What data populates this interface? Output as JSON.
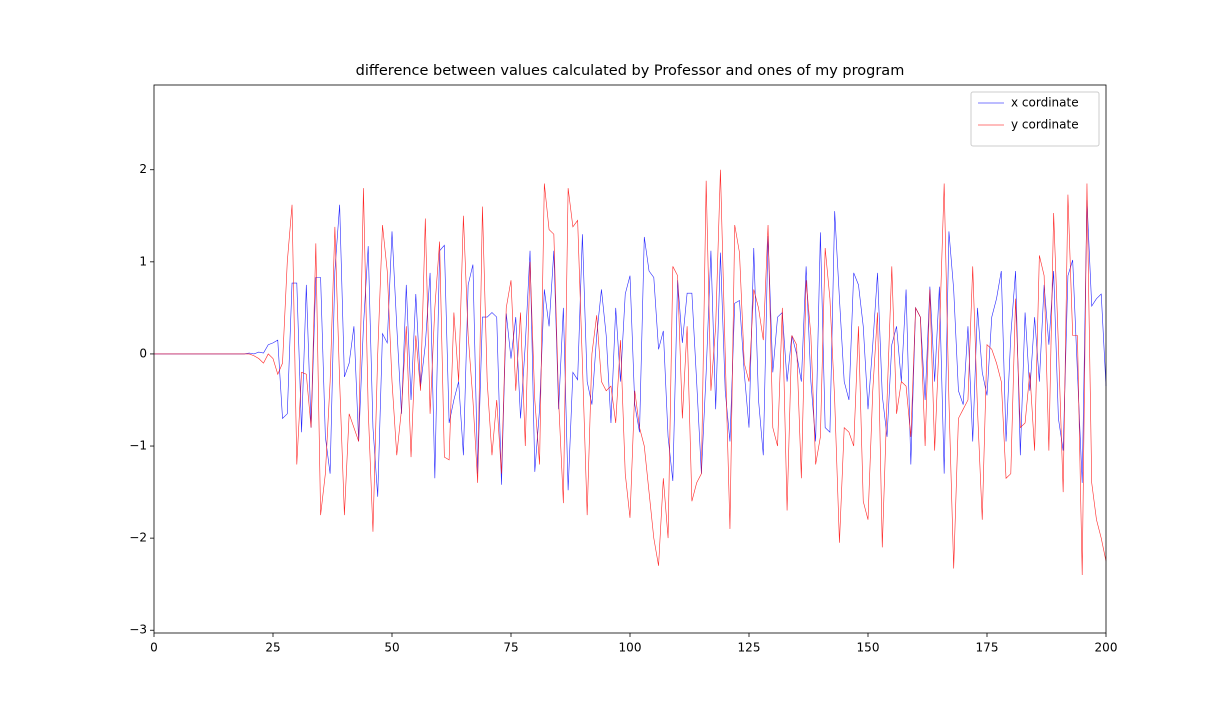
{
  "chart_data": {
    "type": "line",
    "title": "difference between values calculated by Professor and ones of my program",
    "x": [
      0,
      1,
      2,
      3,
      4,
      5,
      6,
      7,
      8,
      9,
      10,
      11,
      12,
      13,
      14,
      15,
      16,
      17,
      18,
      19,
      20,
      21,
      22,
      23,
      24,
      25,
      26,
      27,
      28,
      29,
      30,
      31,
      32,
      33,
      34,
      35,
      36,
      37,
      38,
      39,
      40,
      41,
      42,
      43,
      44,
      45,
      46,
      47,
      48,
      49,
      50,
      51,
      52,
      53,
      54,
      55,
      56,
      57,
      58,
      59,
      60,
      61,
      62,
      63,
      64,
      65,
      66,
      67,
      68,
      69,
      70,
      71,
      72,
      73,
      74,
      75,
      76,
      77,
      78,
      79,
      80,
      81,
      82,
      83,
      84,
      85,
      86,
      87,
      88,
      89,
      90,
      91,
      92,
      93,
      94,
      95,
      96,
      97,
      98,
      99,
      100,
      101,
      102,
      103,
      104,
      105,
      106,
      107,
      108,
      109,
      110,
      111,
      112,
      113,
      114,
      115,
      116,
      117,
      118,
      119,
      120,
      121,
      122,
      123,
      124,
      125,
      126,
      127,
      128,
      129,
      130,
      131,
      132,
      133,
      134,
      135,
      136,
      137,
      138,
      139,
      140,
      141,
      142,
      143,
      144,
      145,
      146,
      147,
      148,
      149,
      150,
      151,
      152,
      153,
      154,
      155,
      156,
      157,
      158,
      159,
      160,
      161,
      162,
      163,
      164,
      165,
      166,
      167,
      168,
      169,
      170,
      171,
      172,
      173,
      174,
      175,
      176,
      177,
      178,
      179,
      180,
      181,
      182,
      183,
      184,
      185,
      186,
      187,
      188,
      189,
      190,
      191,
      192,
      193,
      194,
      195,
      196,
      197,
      198,
      199,
      200
    ],
    "series": [
      {
        "name": "x cordinate",
        "color": "#0000ff",
        "values": [
          0,
          0,
          0,
          0,
          0,
          0,
          0,
          0,
          0,
          0,
          0,
          0,
          0,
          0,
          0,
          0,
          0,
          0,
          0,
          0,
          0.01,
          0,
          0.02,
          0.01,
          0.1,
          0.12,
          0.15,
          -0.7,
          -0.65,
          0.77,
          0.77,
          -0.85,
          0.75,
          -0.8,
          0.83,
          0.83,
          -0.9,
          -1.3,
          0.9,
          1.62,
          -0.25,
          -0.1,
          0.3,
          -0.95,
          0.3,
          1.17,
          -0.8,
          -1.55,
          0.22,
          0.12,
          1.33,
          0.3,
          -0.65,
          0.75,
          -0.5,
          0.65,
          -0.35,
          0.1,
          0.88,
          -1.35,
          1.12,
          1.18,
          -0.75,
          -0.5,
          -0.3,
          -1.1,
          0.75,
          0.97,
          -1.3,
          0.4,
          0.4,
          0.45,
          0.4,
          -1.42,
          0.44,
          -0.05,
          0.4,
          -0.7,
          0.1,
          1.12,
          -1.28,
          -0.6,
          0.7,
          0.3,
          1.12,
          -0.6,
          0.5,
          -1.48,
          -0.2,
          -0.28,
          1.3,
          -0.3,
          -0.55,
          0.2,
          0.7,
          0.2,
          -0.75,
          0.5,
          -0.3,
          0.65,
          0.85,
          -0.55,
          -0.85,
          1.27,
          0.9,
          0.83,
          0.05,
          0.25,
          -0.9,
          -1.38,
          0.8,
          0.12,
          0.66,
          0.66,
          -0.3,
          -1.3,
          -0.2,
          1.12,
          -0.6,
          1.1,
          -0.4,
          -0.95,
          0.55,
          0.58,
          -0.2,
          -0.8,
          1.15,
          -0.5,
          -1.1,
          1.28,
          -0.2,
          0.4,
          0.45,
          -0.3,
          0.2,
          0,
          -0.3,
          0.95,
          -0.3,
          -0.95,
          1.32,
          -0.8,
          -0.85,
          1.55,
          0.6,
          -0.3,
          -0.5,
          0.88,
          0.75,
          0.3,
          -0.6,
          0.1,
          0.88,
          -0.45,
          -0.9,
          0.1,
          0.3,
          -0.3,
          0.7,
          -1.2,
          0.5,
          0.4,
          -0.5,
          0.73,
          -0.3,
          0.73,
          -1.3,
          1.33,
          0.7,
          -0.4,
          -0.55,
          0.3,
          -0.95,
          0.5,
          -0.2,
          -0.45,
          0.4,
          0.6,
          0.9,
          -0.95,
          0.2,
          0.9,
          -1.1,
          0.45,
          -0.4,
          0.4,
          -0.3,
          0.75,
          0.1,
          0.9,
          -0.7,
          -1.05,
          0.85,
          1.02,
          -0.2,
          -1.4,
          1.67,
          0.52,
          0.6,
          0.65,
          -0.35
        ]
      },
      {
        "name": "y cordinate",
        "color": "#ff0000",
        "values": [
          0,
          0,
          0,
          0,
          0,
          0,
          0,
          0,
          0,
          0,
          0,
          0,
          0,
          0,
          0,
          0,
          0,
          0,
          0,
          0,
          0,
          -0.02,
          -0.05,
          -0.1,
          0,
          -0.05,
          -0.22,
          -0.1,
          1,
          1.62,
          -1.2,
          -0.2,
          -0.22,
          -0.8,
          1.2,
          -1.75,
          -1.3,
          -0.3,
          1.38,
          -0.3,
          -1.75,
          -0.65,
          -0.8,
          -0.95,
          1.8,
          -0.6,
          -1.93,
          0,
          1.4,
          0.9,
          -0.3,
          -1.1,
          -0.6,
          0.3,
          -1.12,
          0.2,
          -0.4,
          1.47,
          -0.65,
          0.5,
          1.22,
          -1.12,
          -1.15,
          0.45,
          -0.3,
          1.5,
          0.2,
          -0.5,
          -1.4,
          1.6,
          -0.3,
          -1.1,
          -0.5,
          -1.3,
          0.5,
          0.8,
          -0.4,
          0.45,
          -1,
          1,
          -0.5,
          -1.2,
          1.85,
          1.35,
          1.3,
          -0.5,
          -1.62,
          1.8,
          1.38,
          1.45,
          -0.1,
          -1.75,
          0,
          0.42,
          -0.3,
          -0.4,
          -0.35,
          -0.75,
          0.15,
          -1.3,
          -1.78,
          -0.4,
          -0.8,
          -1,
          -1.5,
          -2,
          -2.3,
          -1.35,
          -2,
          0.95,
          0.85,
          -0.7,
          0.3,
          -1.6,
          -1.4,
          -1.3,
          1.88,
          -0.4,
          0.3,
          2,
          0,
          -1.9,
          1.4,
          1.1,
          -0.1,
          -0.3,
          0.7,
          0.5,
          0.15,
          1.4,
          -0.8,
          -1,
          0.5,
          -1.7,
          0.2,
          0.1,
          -1.35,
          0.8,
          0.2,
          -1.2,
          -0.9,
          1.15,
          0.6,
          -0.5,
          -2.05,
          -0.8,
          -0.85,
          -1,
          0.3,
          -1.6,
          -1.8,
          -0.4,
          0.45,
          -2.1,
          -0.5,
          0.95,
          -0.65,
          -0.3,
          -0.35,
          -0.9,
          0.5,
          0.4,
          -1,
          0.7,
          -1.05,
          0.2,
          1.85,
          -0.5,
          -2.33,
          -0.7,
          -0.6,
          -0.5,
          0.95,
          -0.6,
          -1.8,
          0.1,
          0.05,
          -0.1,
          -0.3,
          -1.35,
          -1.3,
          0.6,
          -0.8,
          -0.75,
          -0.2,
          -1.05,
          1.07,
          0.85,
          -1.05,
          1.53,
          0.1,
          -1.5,
          1.73,
          0.2,
          0.2,
          -2.4,
          1.85,
          -1.4,
          -1.8,
          -2,
          -2.25
        ]
      }
    ],
    "xlim": [
      0,
      200
    ],
    "xticks": [
      0,
      25,
      50,
      75,
      100,
      125,
      150,
      175,
      200
    ],
    "ylim": [
      -3.03,
      2.92
    ],
    "yticks": [
      {
        "value": -3,
        "label": "−3"
      },
      {
        "value": -2,
        "label": "−2"
      },
      {
        "value": -1,
        "label": "−1"
      },
      0,
      1,
      2
    ],
    "legend": "upper right"
  }
}
